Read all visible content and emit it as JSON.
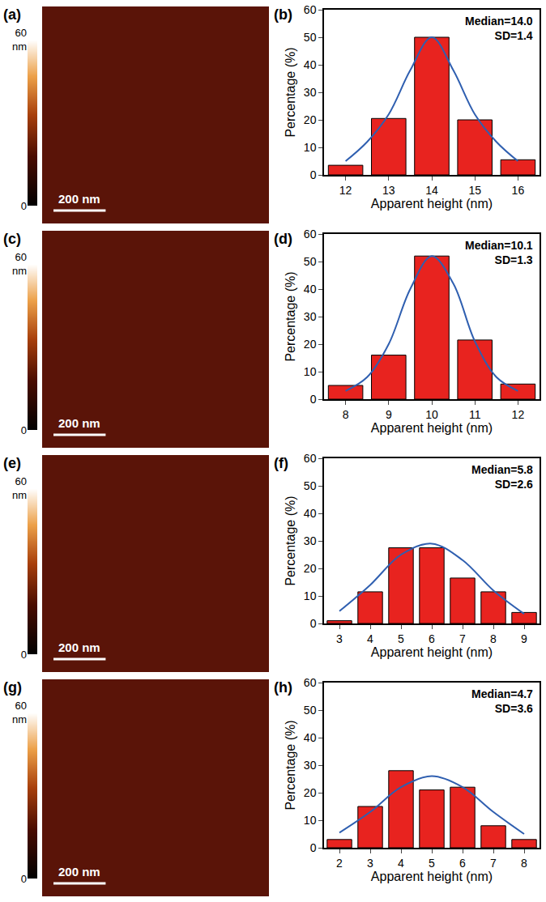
{
  "chart_data": [
    {
      "type": "image",
      "panel": "(a)",
      "colorbar": {
        "range": [
          0,
          60
        ],
        "ticks": [
          0,
          {
            "value": 60,
            "label": "60 nm"
          }
        ]
      },
      "scale_bar": "200 nm"
    },
    {
      "type": "bar",
      "panel": "(b)",
      "x": [
        12,
        13,
        14,
        15,
        16
      ],
      "values": [
        3.5,
        20.5,
        50,
        20,
        5.5
      ],
      "color": "#e8231f",
      "xlim": [
        11.5,
        16.5
      ],
      "xticks": [
        12,
        13,
        14,
        15,
        16
      ],
      "ylim": [
        0,
        60
      ],
      "yticks": [
        0,
        10,
        20,
        30,
        40,
        50,
        60
      ],
      "xlabel": "Apparent height (nm)",
      "ylabel": "Percentage (%)",
      "annotations": [
        "Median=14.0",
        "SD=1.4"
      ],
      "fit": {
        "type": "line",
        "color": "#2f5fb0",
        "x": [
          12,
          12.5,
          13,
          13.5,
          14,
          14.5,
          15,
          15.5,
          16
        ],
        "values": [
          5,
          12,
          22,
          38,
          50,
          38,
          22,
          12,
          5
        ]
      }
    },
    {
      "type": "image",
      "panel": "(c)",
      "colorbar": {
        "range": [
          0,
          60
        ],
        "ticks": [
          0,
          {
            "value": 60,
            "label": "60 nm"
          }
        ]
      },
      "scale_bar": "200 nm"
    },
    {
      "type": "bar",
      "panel": "(d)",
      "x": [
        8,
        9,
        10,
        11,
        12
      ],
      "values": [
        5,
        16,
        52,
        21.5,
        5.5
      ],
      "color": "#e8231f",
      "xlim": [
        7.5,
        12.5
      ],
      "xticks": [
        8,
        9,
        10,
        11,
        12
      ],
      "ylim": [
        0,
        60
      ],
      "yticks": [
        0,
        10,
        20,
        30,
        40,
        50,
        60
      ],
      "xlabel": "Apparent height (nm)",
      "ylabel": "Percentage (%)",
      "annotations": [
        "Median=10.1",
        "SD=1.3"
      ],
      "fit": {
        "type": "line",
        "color": "#2f5fb0",
        "x": [
          8,
          8.5,
          9,
          9.5,
          10,
          10.5,
          11,
          11.5,
          12
        ],
        "values": [
          3,
          8,
          20,
          40,
          52,
          42,
          21,
          8,
          3
        ]
      }
    },
    {
      "type": "image",
      "panel": "(e)",
      "colorbar": {
        "range": [
          0,
          60
        ],
        "ticks": [
          0,
          {
            "value": 60,
            "label": "60 nm"
          }
        ]
      },
      "scale_bar": "200 nm"
    },
    {
      "type": "bar",
      "panel": "(f)",
      "x": [
        3,
        4,
        5,
        6,
        7,
        8,
        9
      ],
      "values": [
        1,
        11.5,
        27.5,
        27.5,
        16.5,
        11.5,
        4
      ],
      "color": "#e8231f",
      "xlim": [
        2.5,
        9.5
      ],
      "xticks": [
        3,
        4,
        5,
        6,
        7,
        8,
        9
      ],
      "ylim": [
        0,
        60
      ],
      "yticks": [
        0,
        10,
        20,
        30,
        40,
        50,
        60
      ],
      "xlabel": "Apparent height (nm)",
      "ylabel": "Percentage (%)",
      "annotations": [
        "Median=5.8",
        "SD=2.6"
      ],
      "fit": {
        "type": "line",
        "color": "#2f5fb0",
        "x": [
          3,
          4,
          5,
          6,
          7,
          8,
          9
        ],
        "values": [
          4.5,
          14,
          25,
          29,
          23,
          12,
          3.5
        ]
      }
    },
    {
      "type": "image",
      "panel": "(g)",
      "colorbar": {
        "range": [
          0,
          60
        ],
        "ticks": [
          0,
          {
            "value": 60,
            "label": "60 nm"
          }
        ]
      },
      "scale_bar": "200 nm"
    },
    {
      "type": "bar",
      "panel": "(h)",
      "x": [
        2,
        3,
        4,
        5,
        6,
        7,
        8
      ],
      "values": [
        3,
        15,
        28,
        21,
        22,
        8,
        3
      ],
      "color": "#e8231f",
      "xlim": [
        1.5,
        8.5
      ],
      "xticks": [
        2,
        3,
        4,
        5,
        6,
        7,
        8
      ],
      "ylim": [
        0,
        60
      ],
      "yticks": [
        0,
        10,
        20,
        30,
        40,
        50,
        60
      ],
      "xlabel": "Apparent height (nm)",
      "ylabel": "Percentage (%)",
      "annotations": [
        "Median=4.7",
        "SD=3.6"
      ],
      "fit": {
        "type": "line",
        "color": "#2f5fb0",
        "x": [
          2,
          3,
          4,
          5,
          6,
          7,
          8
        ],
        "values": [
          5.5,
          13,
          22,
          26,
          22,
          13,
          5
        ]
      }
    }
  ]
}
